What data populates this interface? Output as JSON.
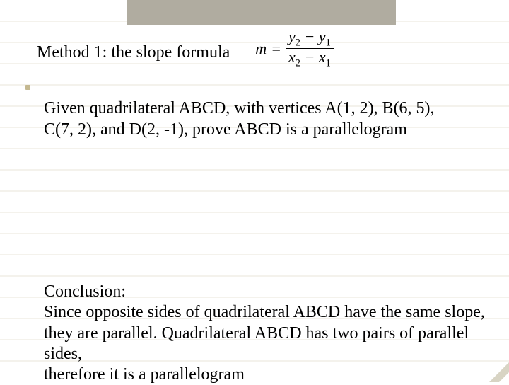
{
  "layout": {
    "grid_line_color": "#e8e4d8",
    "grid_row_height": 30,
    "banner_color": "#b0aca0",
    "bullet_color": "#c4b890"
  },
  "heading": {
    "text": "Method 1: the slope formula",
    "font_size": 24
  },
  "formula": {
    "lhs": "m",
    "equals": "=",
    "numerator_parts": [
      "y",
      "2",
      " − ",
      "y",
      "1"
    ],
    "denominator_parts": [
      "x",
      "2",
      " − ",
      "x",
      "1"
    ],
    "font_size": 22
  },
  "given": {
    "line1": "Given quadrilateral ABCD, with vertices A(1, 2), B(6, 5),",
    "line2": "C(7, 2), and D(2, -1), prove ABCD is a parallelogram",
    "font_size": 24
  },
  "conclusion": {
    "label": "Conclusion:",
    "line1": "Since opposite sides of quadrilateral ABCD have the same slope,",
    "line2": "they are parallel.  Quadrilateral ABCD has two pairs of parallel sides,",
    "line3": "therefore it is a parallelogram",
    "font_size": 24
  }
}
